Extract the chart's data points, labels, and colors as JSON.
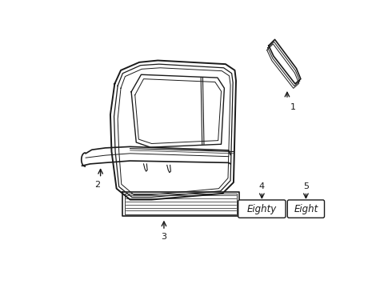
{
  "bg_color": "#ffffff",
  "line_color": "#1a1a1a",
  "label_1": "1",
  "label_2": "2",
  "label_3": "3",
  "label_4": "4",
  "label_5": "5",
  "badge_1": "Eighty",
  "badge_2": "Eight",
  "figsize": [
    4.9,
    3.6
  ],
  "dpi": 100
}
